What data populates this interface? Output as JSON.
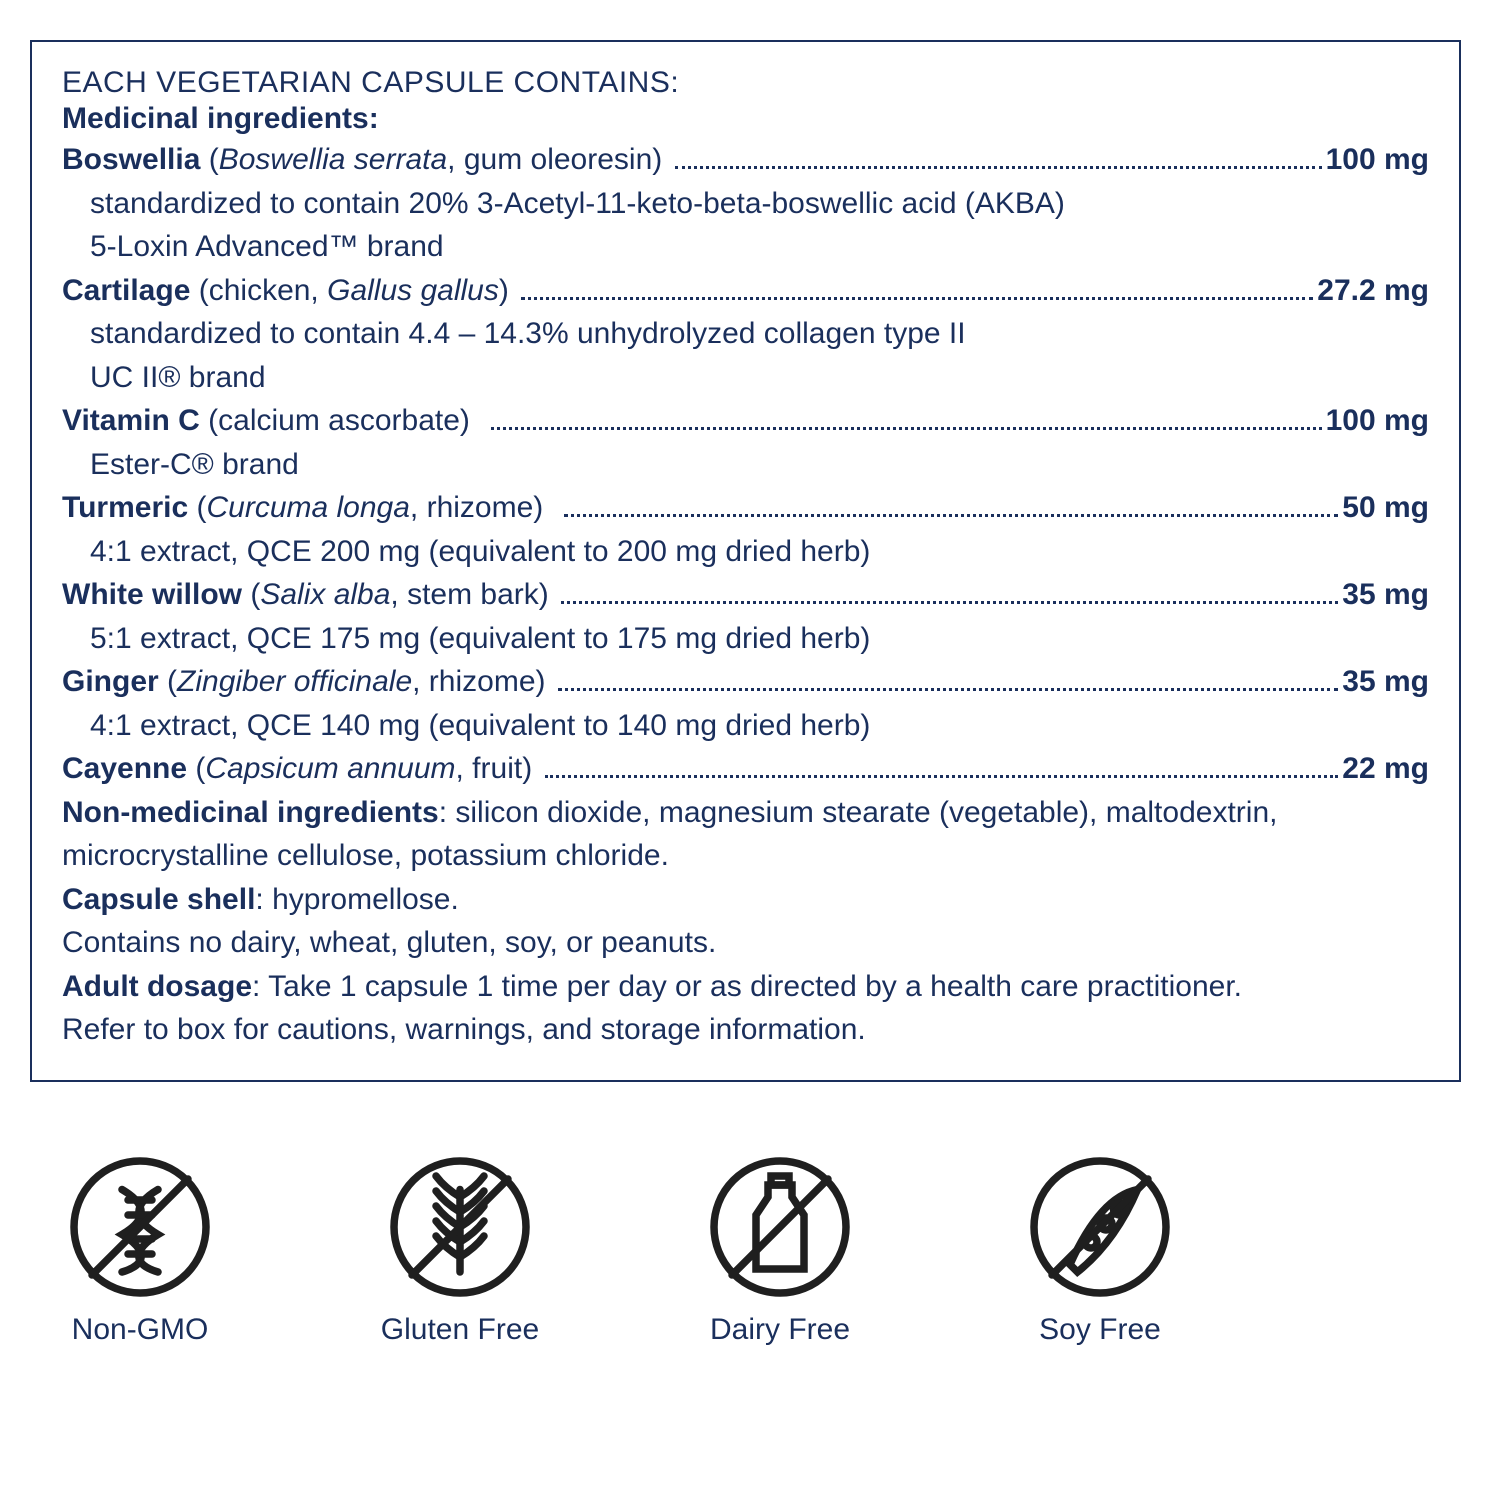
{
  "colors": {
    "text": "#1a2f5c",
    "border": "#1a2f5c",
    "background": "#ffffff",
    "icon_stroke": "#1f1f1f"
  },
  "typography": {
    "body_fontsize": 30,
    "line_height": 1.45
  },
  "header": "EACH VEGETARIAN CAPSULE CONTAINS:",
  "medicinal_label": "Medicinal ingredients:",
  "ingredients": [
    {
      "name": "Boswellia",
      "paren_prefix": " (",
      "italic": "Boswellia serrata",
      "paren_suffix": ", gum oleoresin) ",
      "amount": "100 mg",
      "details": [
        "standardized to contain 20% 3-Acetyl-11-keto-beta-boswellic acid (AKBA)",
        "5-Loxin Advanced™ brand"
      ]
    },
    {
      "name": "Cartilage",
      "paren_prefix": " (chicken, ",
      "italic": "Gallus gallus",
      "paren_suffix": ") ",
      "amount": "27.2 mg",
      "details": [
        "standardized to contain 4.4 – 14.3% unhydrolyzed collagen type II",
        "UC II® brand"
      ]
    },
    {
      "name": "Vitamin C",
      "paren_prefix": " (calcium ascorbate)  ",
      "italic": "",
      "paren_suffix": "",
      "amount": "100 mg",
      "details": [
        "Ester-C® brand"
      ]
    },
    {
      "name": "Turmeric",
      "paren_prefix": " (",
      "italic": "Curcuma longa",
      "paren_suffix": ", rhizome)  ",
      "amount": "50 mg",
      "details": [
        "4:1 extract, QCE 200 mg (equivalent to 200 mg dried herb)"
      ]
    },
    {
      "name": "White willow",
      "paren_prefix": " (",
      "italic": "Salix alba",
      "paren_suffix": ", stem bark) ",
      "amount": "35 mg",
      "details": [
        "5:1 extract, QCE 175 mg (equivalent to 175 mg dried herb)"
      ]
    },
    {
      "name": "Ginger",
      "paren_prefix": " (",
      "italic": "Zingiber officinale",
      "paren_suffix": ", rhizome) ",
      "amount": "35 mg",
      "details": [
        "4:1 extract, QCE 140 mg (equivalent to 140 mg dried herb)"
      ]
    },
    {
      "name": "Cayenne",
      "paren_prefix": " (",
      "italic": "Capsicum annuum",
      "paren_suffix": ", fruit) ",
      "amount": "22 mg",
      "details": []
    }
  ],
  "footer_lines": [
    {
      "bold": "Non-medicinal ingredients",
      "rest": ": silicon dioxide, magnesium stearate (vegetable), maltodextrin, microcrystalline cellulose, potassium chloride."
    },
    {
      "bold": "Capsule shell",
      "rest": ": hypromellose."
    },
    {
      "bold": "",
      "rest": "Contains no dairy, wheat, gluten, soy, or peanuts."
    },
    {
      "bold": "Adult dosage",
      "rest": ": Take 1 capsule 1 time per day or as directed by a health care practitioner."
    },
    {
      "bold": "",
      "rest": "Refer to box for cautions, warnings, and storage information."
    }
  ],
  "badges": [
    {
      "icon": "dna",
      "label": "Non-GMO"
    },
    {
      "icon": "wheat",
      "label": "Gluten Free"
    },
    {
      "icon": "milk",
      "label": "Dairy Free"
    },
    {
      "icon": "soy",
      "label": "Soy Free"
    }
  ]
}
